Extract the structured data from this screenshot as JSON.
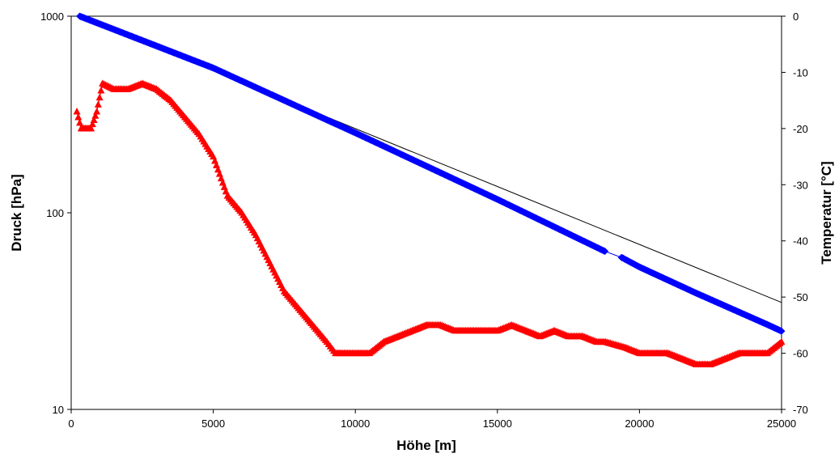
{
  "chart_data": {
    "type": "scatter",
    "title": "",
    "xlabel": "Höhe [m]",
    "ylabel_left": "Druck [hPa]",
    "ylabel_right": "Temperatur [°C]",
    "xlim": [
      0,
      25000
    ],
    "ylim_left": [
      10,
      1000
    ],
    "ylim_right": [
      -70,
      0
    ],
    "left_scale": "log",
    "grid": false,
    "legend": "none",
    "x_ticks": [
      "0",
      "5000",
      "10000",
      "15000",
      "20000",
      "25000"
    ],
    "y_left_ticks": [
      "10",
      "100",
      "1000"
    ],
    "y_right_ticks": [
      "0",
      "-10",
      "-20",
      "-30",
      "-40",
      "-50",
      "-60",
      "-70"
    ],
    "x_tick_values": [
      0,
      5000,
      10000,
      15000,
      20000,
      25000
    ],
    "y_left_tick_values": [
      10,
      100,
      1000
    ],
    "y_right_tick_values": [
      0,
      -10,
      -20,
      -30,
      -40,
      -50,
      -60,
      -70
    ],
    "colors": {
      "pressure": "#0000ff",
      "temperature": "#ff0000",
      "reference": "#000000"
    },
    "series": [
      {
        "axis": "left",
        "marker": "diamond",
        "x": [
          300,
          5000,
          10000,
          15000,
          18750,
          19400,
          20000,
          22000,
          24500,
          25000
        ],
        "y": [
          1000,
          545,
          255,
          117,
          64,
          59,
          53,
          39,
          27,
          25
        ]
      },
      {
        "axis": "right",
        "marker": "triangle",
        "x": [
          200,
          350,
          500,
          700,
          900,
          1100,
          1500,
          2000,
          2500,
          3000,
          3500,
          4000,
          4500,
          5000,
          5500,
          6000,
          6500,
          7000,
          7500,
          8000,
          8500,
          9000,
          9300,
          9500,
          10000,
          10500,
          11000,
          11500,
          12000,
          12500,
          13000,
          13500,
          14000,
          14500,
          15000,
          15500,
          16000,
          16500,
          17000,
          17500,
          18000,
          18500,
          18800,
          19500,
          20000,
          20500,
          21000,
          21500,
          22000,
          22500,
          23000,
          23500,
          24000,
          24500,
          25000
        ],
        "y": [
          -17,
          -20,
          -20,
          -20,
          -17,
          -12,
          -13,
          -13,
          -12,
          -13,
          -15,
          -18,
          -21,
          -25,
          -32,
          -35,
          -39,
          -44,
          -49,
          -52,
          -55,
          -58,
          -60,
          -60,
          -60,
          -60,
          -58,
          -57,
          -56,
          -55,
          -55,
          -56,
          -56,
          -56,
          -56,
          -55,
          -56,
          -57,
          -56,
          -57,
          -57,
          -58,
          -58,
          -59,
          -60,
          -60,
          -60,
          -61,
          -62,
          -62,
          -61,
          -60,
          -60,
          -60,
          -58
        ]
      },
      {
        "axis": "left",
        "marker": "none",
        "x": [
          300,
          25000
        ],
        "y": [
          1000,
          35
        ]
      }
    ]
  }
}
